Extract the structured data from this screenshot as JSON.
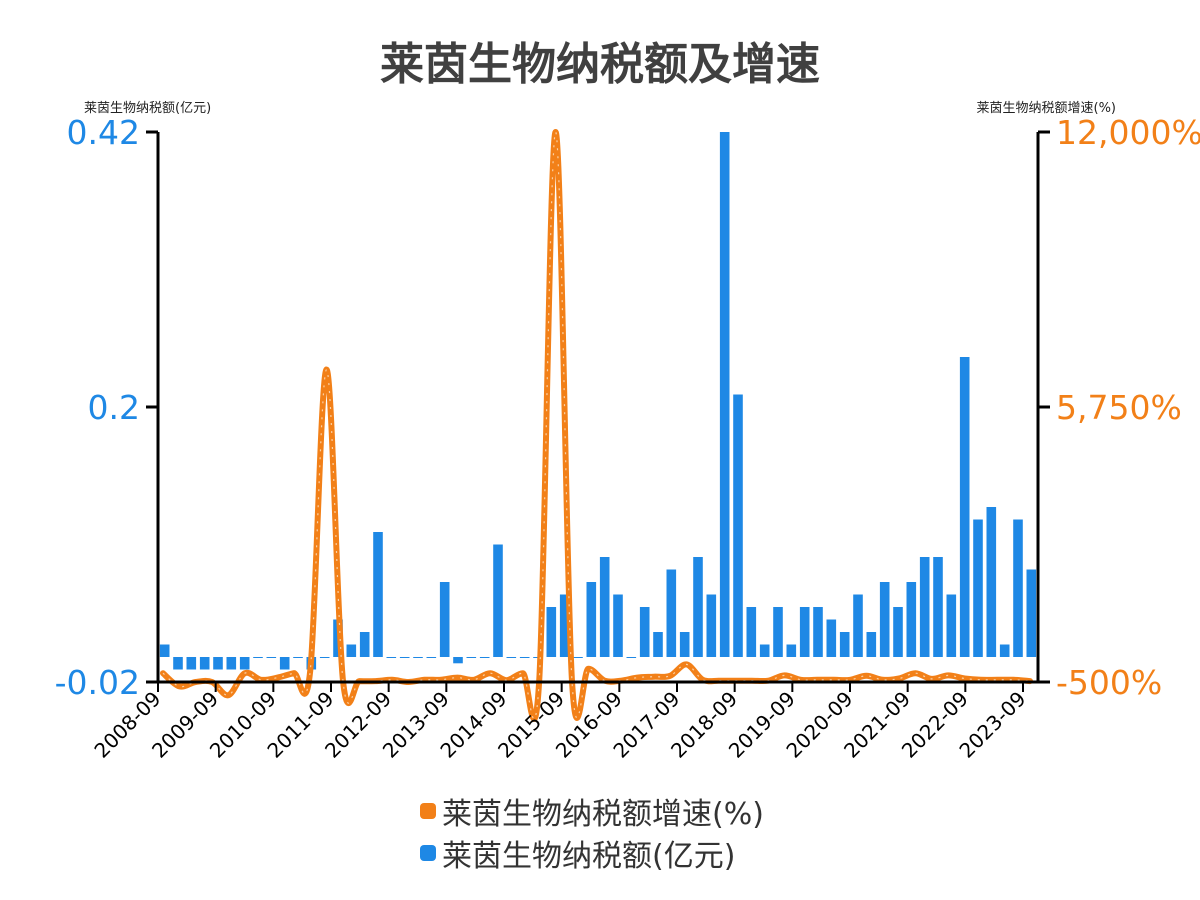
{
  "chart_data": {
    "type": "bar",
    "title": "莱茵生物纳税额及增速",
    "ylabel_left": "莱茵生物纳税额(亿元)",
    "ylabel_right": "莱茵生物纳税额增速(%)",
    "left_axis": {
      "min": -0.02,
      "max": 0.42,
      "ticks": [
        -0.02,
        0.2,
        0.42
      ],
      "tick_labels": [
        "-0.02",
        "0.2",
        "0.42"
      ]
    },
    "right_axis": {
      "min": -500,
      "max": 12000,
      "ticks": [
        -500,
        5750,
        12000
      ],
      "tick_labels": [
        "-500%",
        "5,750%",
        "12,000%"
      ]
    },
    "x_tick_labels": [
      "2008-09",
      "2009-09",
      "2010-09",
      "2011-09",
      "2012-09",
      "2013-09",
      "2014-09",
      "2015-09",
      "2016-09",
      "2017-09",
      "2018-09",
      "2019-09",
      "2020-09",
      "2021-09",
      "2022-09",
      "2023-09"
    ],
    "series": [
      {
        "name": "莱茵生物纳税额(亿元)",
        "kind": "bar",
        "axis": "left",
        "values": [
          0.01,
          -0.01,
          -0.01,
          -0.01,
          -0.01,
          -0.01,
          -0.01,
          0.0,
          0.0,
          -0.01,
          0.0,
          -0.01,
          0.0,
          0.03,
          0.01,
          0.02,
          0.1,
          0.0,
          0.0,
          0.0,
          0.0,
          0.06,
          -0.005,
          0.0,
          0.0,
          0.09,
          0.0,
          0.0,
          0.0,
          0.04,
          0.05,
          0.0,
          0.06,
          0.08,
          0.05,
          0.0,
          0.04,
          0.02,
          0.07,
          0.02,
          0.08,
          0.05,
          0.42,
          0.21,
          0.04,
          0.01,
          0.04,
          0.01,
          0.04,
          0.04,
          0.03,
          0.02,
          0.05,
          0.02,
          0.06,
          0.04,
          0.06,
          0.08,
          0.08,
          0.05,
          0.24,
          0.11,
          0.12,
          0.01,
          0.11,
          0.07
        ],
        "color": "#1e88e5"
      },
      {
        "name": "莱茵生物纳税额增速(%)",
        "kind": "line",
        "axis": "right",
        "values": [
          -300,
          -600,
          -500,
          -500,
          -800,
          -300,
          -450,
          -400,
          -300,
          -250,
          6600,
          -450,
          -480,
          -480,
          -450,
          -500,
          -450,
          -450,
          -400,
          -450,
          -300,
          -460,
          -300,
          -470,
          12000,
          -480,
          -200,
          -470,
          -470,
          -400,
          -380,
          -360,
          -100,
          -450,
          -470,
          -470,
          -470,
          -470,
          -350,
          -450,
          -450,
          -450,
          -450,
          -360,
          -450,
          -420,
          -300,
          -430,
          -350,
          -420,
          -450,
          -450,
          -450,
          -480
        ],
        "color": "#f28018"
      }
    ],
    "legend": [
      "莱茵生物纳税额增速(%)",
      "莱茵生物纳税额(亿元)"
    ],
    "legend_placement": "bottom",
    "grid": false
  }
}
